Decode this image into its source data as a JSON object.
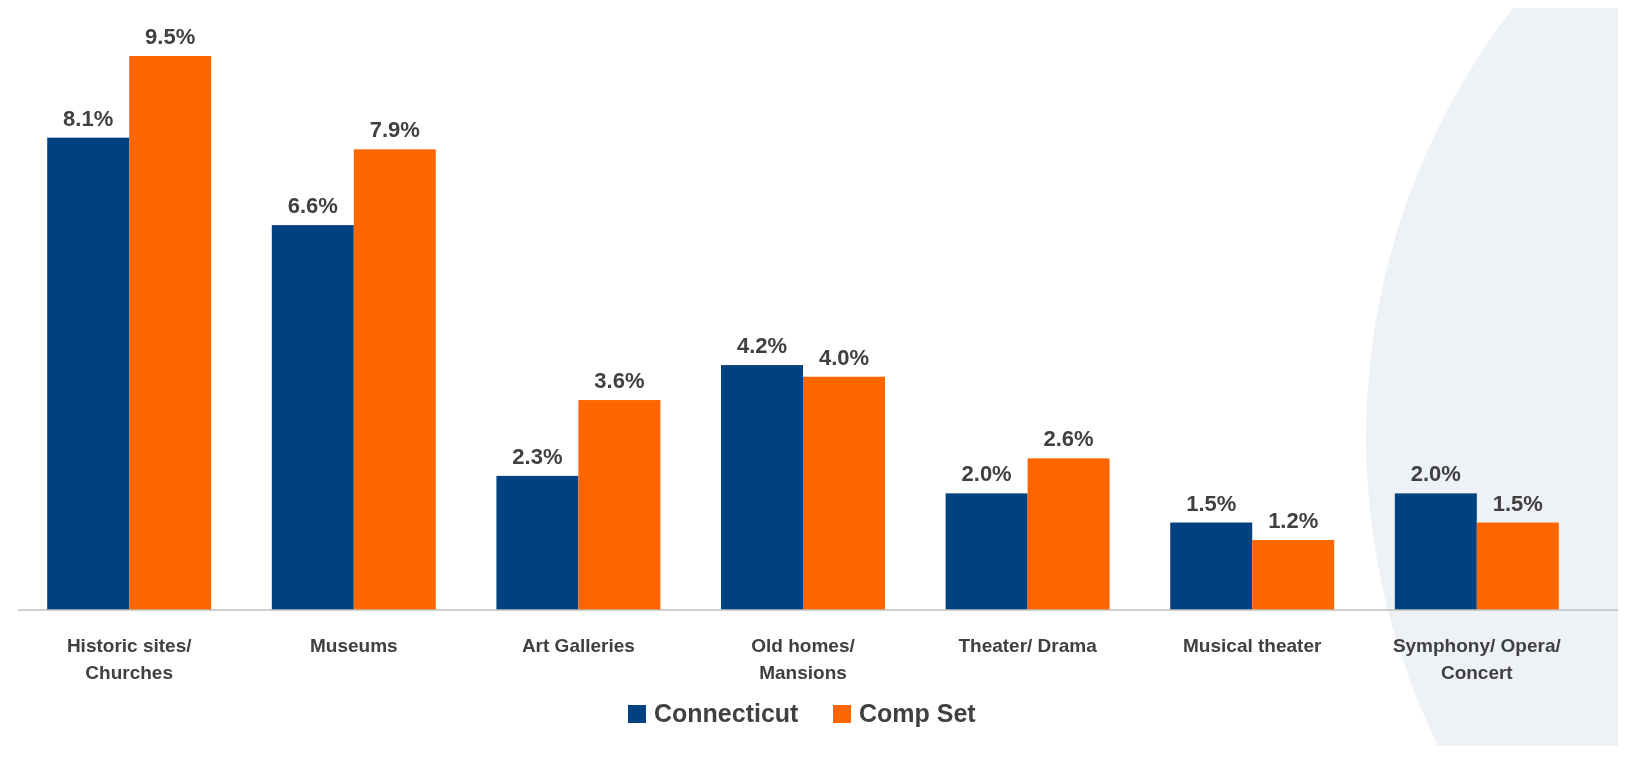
{
  "chart_data": {
    "type": "bar",
    "categories": [
      "Historic sites/\nChurches",
      "Museums",
      "Art Galleries",
      "Old homes/\nMansions",
      "Theater/ Drama",
      "Musical theater",
      "Symphony/ Opera/\nConcert"
    ],
    "series": [
      {
        "name": "Connecticut",
        "color": "#00427f",
        "values": [
          8.1,
          6.6,
          2.3,
          4.2,
          2.0,
          1.5,
          2.0
        ],
        "value_labels": [
          "8.1%",
          "6.6%",
          "2.3%",
          "4.2%",
          "2.0%",
          "1.5%",
          "2.0%"
        ]
      },
      {
        "name": "Comp Set",
        "color": "#ff6600",
        "values": [
          9.5,
          7.9,
          3.6,
          4.0,
          2.6,
          1.2,
          1.5
        ],
        "value_labels": [
          "9.5%",
          "7.9%",
          "3.6%",
          "4.0%",
          "2.6%",
          "1.2%",
          "1.5%"
        ]
      }
    ],
    "data_labels": false,
    "legend": "bottom"
  }
}
